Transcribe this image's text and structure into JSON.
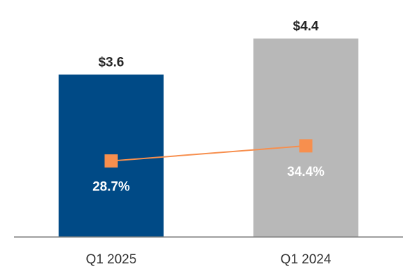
{
  "chart_data": {
    "type": "bar",
    "title": "",
    "xlabel": "",
    "ylabel": "",
    "ylim": [
      0,
      4.7
    ],
    "categories": [
      "Q1 2025",
      "Q1 2024"
    ],
    "values": [
      3.6,
      4.4
    ],
    "value_labels": [
      "$3.6",
      "$4.4"
    ],
    "bar_colors": [
      "#004A86",
      "#B8B8B8"
    ],
    "overlay_series": {
      "type": "line",
      "marker": "square",
      "color": "#F78F4E",
      "values": [
        28.7,
        34.4
      ],
      "labels": [
        "28.7%",
        "34.4%"
      ],
      "ylim": [
        0,
        80
      ]
    },
    "grid": false,
    "axis_color": "#7F7F7F"
  }
}
